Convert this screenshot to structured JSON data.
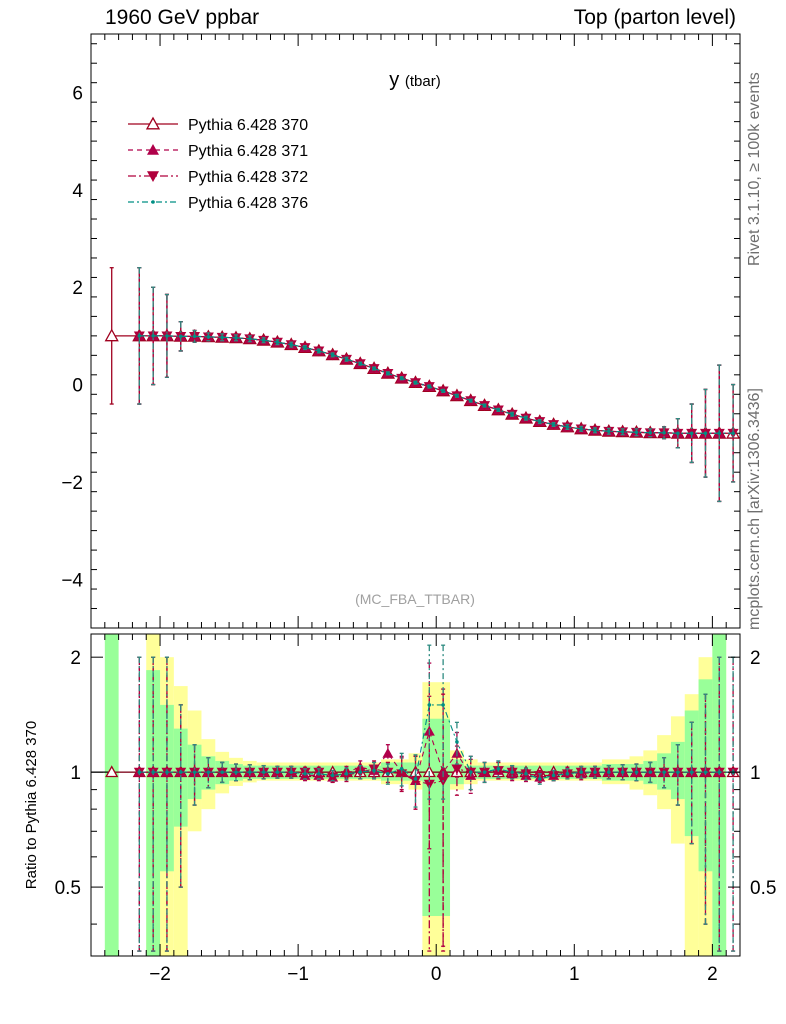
{
  "header": {
    "left": "1960 GeV ppbar",
    "right": "Top (parton level)"
  },
  "side": {
    "rivet": "Rivet 3.1.10, ≥ 100k events",
    "mcplots": "mcplots.cern.ch [arXiv:1306.3436]"
  },
  "chart_data": {
    "type": "line",
    "title": "y (tbar)",
    "analysis_label": "(MC_FBA_TTBAR)",
    "ratio_ylabel": "Ratio to Pythia 6.428 370",
    "xlim": [
      -2.5,
      2.2
    ],
    "ylim_main": [
      -5.0,
      7.2
    ],
    "ylim_ratio": [
      0.33,
      2.3
    ],
    "x_ticks": [
      "−2",
      "−1",
      "0",
      "1",
      "2"
    ],
    "y_ticks_main": [
      "−4",
      "−2",
      "0",
      "2",
      "4",
      "6"
    ],
    "y_ticks_ratio": [
      "0.5",
      "1",
      "2"
    ],
    "legend": [
      {
        "name": "Pythia 6.428 370",
        "color": "#a0001f",
        "dash": "none",
        "marker": "triangle-open"
      },
      {
        "name": "Pythia 6.428 371",
        "color": "#b0004a",
        "dash": "5,4",
        "marker": "triangle-up"
      },
      {
        "name": "Pythia 6.428 372",
        "color": "#b0003c",
        "dash": "8,3,2,3",
        "marker": "triangle-down"
      },
      {
        "name": "Pythia 6.428 376",
        "color": "#008f84",
        "dash": "6,3,2,3",
        "marker": "dot"
      }
    ],
    "x": [
      -2.35,
      -2.15,
      -2.05,
      -1.95,
      -1.85,
      -1.75,
      -1.65,
      -1.55,
      -1.45,
      -1.35,
      -1.25,
      -1.15,
      -1.05,
      -0.95,
      -0.85,
      -0.75,
      -0.65,
      -0.55,
      -0.45,
      -0.35,
      -0.25,
      -0.15,
      -0.05,
      0.05,
      0.15,
      0.25,
      0.35,
      0.45,
      0.55,
      0.65,
      0.75,
      0.85,
      0.95,
      1.05,
      1.15,
      1.25,
      1.35,
      1.45,
      1.55,
      1.65,
      1.75,
      1.85,
      1.95,
      2.05,
      2.15
    ],
    "y_mean": [
      1.0,
      1.0,
      1.0,
      1.0,
      0.99,
      0.99,
      0.98,
      0.97,
      0.96,
      0.94,
      0.91,
      0.87,
      0.82,
      0.76,
      0.69,
      0.61,
      0.52,
      0.43,
      0.33,
      0.23,
      0.13,
      0.04,
      -0.04,
      -0.13,
      -0.23,
      -0.33,
      -0.43,
      -0.52,
      -0.61,
      -0.69,
      -0.76,
      -0.82,
      -0.87,
      -0.91,
      -0.94,
      -0.96,
      -0.97,
      -0.98,
      -0.99,
      -0.99,
      -1.0,
      -1.0,
      -1.0,
      -1.0,
      -1.0
    ],
    "main_err": [
      1.4,
      1.4,
      1.0,
      0.85,
      0.3,
      0.12,
      0.08,
      0.07,
      0.06,
      0.06,
      0.05,
      0.05,
      0.05,
      0.04,
      0.04,
      0.04,
      0.04,
      0.03,
      0.03,
      0.03,
      0.03,
      0.03,
      0.03,
      0.03,
      0.03,
      0.03,
      0.03,
      0.03,
      0.04,
      0.04,
      0.04,
      0.04,
      0.05,
      0.05,
      0.05,
      0.06,
      0.06,
      0.07,
      0.08,
      0.12,
      0.3,
      0.6,
      0.9,
      1.4,
      1.0
    ],
    "series": [
      {
        "name": "Pythia 6.428 370",
        "x_first": -2.35,
        "values": [
          1.0,
          1.0,
          1.0,
          1.0,
          1.0,
          1.0,
          1.0,
          1.0,
          1.0,
          1.0,
          1.0,
          1.0,
          1.0,
          1.0,
          1.0,
          1.0,
          1.0,
          1.0,
          1.0,
          1.0,
          1.0,
          1.0,
          1.0,
          1.0,
          1.0,
          1.0,
          1.0,
          1.0,
          1.0,
          1.0,
          1.0,
          1.0,
          1.0,
          1.0,
          1.0,
          1.0,
          1.0,
          1.0,
          1.0,
          1.0,
          1.0,
          1.0,
          1.0,
          1.0,
          1.0
        ]
      },
      {
        "name": "Pythia 6.428 371",
        "x_first": -2.15,
        "values": [
          null,
          1.0,
          1.0,
          1.0,
          1.0,
          1.0,
          1.0,
          1.0,
          1.0,
          1.0,
          1.0,
          1.0,
          1.0,
          0.98,
          0.98,
          0.97,
          1.0,
          1.03,
          1.01,
          1.12,
          1.0,
          0.95,
          1.28,
          1.0,
          1.12,
          0.98,
          1.0,
          1.01,
          0.99,
          0.98,
          0.97,
          0.98,
          1.0,
          0.99,
          1.0,
          1.0,
          1.0,
          1.0,
          1.0,
          1.0,
          1.0,
          1.0,
          1.0,
          1.0,
          null
        ]
      },
      {
        "name": "Pythia 6.428 372",
        "x_first": -2.15,
        "values": [
          null,
          1.0,
          1.0,
          1.0,
          1.0,
          1.0,
          1.0,
          1.0,
          1.0,
          1.0,
          1.0,
          1.0,
          1.0,
          1.0,
          1.0,
          0.97,
          0.98,
          1.0,
          1.02,
          1.0,
          0.99,
          0.95,
          0.93,
          0.95,
          1.02,
          1.0,
          1.0,
          1.01,
          1.0,
          0.99,
          0.98,
          0.98,
          0.99,
          1.0,
          1.0,
          1.0,
          1.0,
          1.0,
          1.0,
          1.0,
          1.0,
          1.0,
          1.0,
          1.0,
          1.0
        ]
      },
      {
        "name": "Pythia 6.428 376",
        "x_first": -2.15,
        "values": [
          null,
          1.0,
          1.0,
          1.0,
          1.0,
          1.0,
          1.0,
          1.0,
          1.0,
          1.0,
          1.0,
          1.0,
          1.0,
          0.99,
          0.99,
          0.98,
          0.99,
          1.0,
          1.01,
          0.99,
          1.02,
          0.96,
          1.5,
          1.5,
          1.2,
          1.0,
          1.0,
          1.02,
          1.0,
          0.99,
          0.96,
          0.98,
          0.99,
          1.0,
          1.0,
          1.0,
          1.0,
          1.0,
          1.0,
          1.0,
          1.0,
          1.0,
          1.0,
          1.0,
          1.0
        ]
      }
    ],
    "ratio_err": [
      1.5,
      1.0,
      1.0,
      1.0,
      0.5,
      0.18,
      0.09,
      0.06,
      0.05,
      0.045,
      0.04,
      0.035,
      0.035,
      0.03,
      0.03,
      0.03,
      0.035,
      0.04,
      0.05,
      0.06,
      0.1,
      0.15,
      0.65,
      0.65,
      0.15,
      0.1,
      0.06,
      0.05,
      0.04,
      0.035,
      0.03,
      0.03,
      0.03,
      0.035,
      0.035,
      0.04,
      0.045,
      0.05,
      0.06,
      0.09,
      0.18,
      0.35,
      0.6,
      1.0,
      1.0
    ],
    "band_inner": [
      [
        -2.4,
        -2.3,
        0.33,
        2.3
      ],
      [
        -2.1,
        -2.0,
        0.33,
        1.85
      ],
      [
        -2.0,
        -1.9,
        0.55,
        1.5
      ],
      [
        -1.9,
        -1.8,
        0.72,
        1.3
      ],
      [
        -1.8,
        -1.7,
        0.85,
        1.18
      ],
      [
        -1.7,
        -1.6,
        0.9,
        1.1
      ],
      [
        -1.6,
        -1.5,
        0.93,
        1.07
      ],
      [
        -1.5,
        -1.4,
        0.95,
        1.05
      ],
      [
        -1.4,
        -0.4,
        0.96,
        1.04
      ],
      [
        -0.4,
        -0.1,
        0.95,
        1.06
      ],
      [
        -0.1,
        0.1,
        0.42,
        1.38
      ],
      [
        0.1,
        0.2,
        0.93,
        1.08
      ],
      [
        0.2,
        1.2,
        0.96,
        1.04
      ],
      [
        1.2,
        1.5,
        0.95,
        1.05
      ],
      [
        1.5,
        1.6,
        0.93,
        1.07
      ],
      [
        1.6,
        1.7,
        0.9,
        1.12
      ],
      [
        1.7,
        1.8,
        0.85,
        1.2
      ],
      [
        1.8,
        1.9,
        0.68,
        1.45
      ],
      [
        1.9,
        2.0,
        0.55,
        1.75
      ],
      [
        2.0,
        2.1,
        0.33,
        2.3
      ]
    ],
    "band_outer": [
      [
        -2.1,
        -2.0,
        0.33,
        2.3
      ],
      [
        -2.0,
        -1.9,
        0.33,
        2.0
      ],
      [
        -1.9,
        -1.8,
        0.33,
        1.68
      ],
      [
        -1.8,
        -1.7,
        0.7,
        1.45
      ],
      [
        -1.7,
        -1.6,
        0.8,
        1.22
      ],
      [
        -1.6,
        -1.5,
        0.88,
        1.13
      ],
      [
        -1.5,
        -1.4,
        0.92,
        1.09
      ],
      [
        -1.4,
        -1.3,
        0.94,
        1.07
      ],
      [
        -1.3,
        -0.4,
        0.95,
        1.06
      ],
      [
        -0.4,
        -0.2,
        0.93,
        1.08
      ],
      [
        -0.2,
        -0.1,
        0.9,
        1.12
      ],
      [
        -0.1,
        0.1,
        0.33,
        1.72
      ],
      [
        0.1,
        0.2,
        0.9,
        1.14
      ],
      [
        0.2,
        0.3,
        0.93,
        1.08
      ],
      [
        0.3,
        1.2,
        0.95,
        1.06
      ],
      [
        1.2,
        1.4,
        0.93,
        1.08
      ],
      [
        1.4,
        1.5,
        0.9,
        1.1
      ],
      [
        1.5,
        1.6,
        0.87,
        1.14
      ],
      [
        1.6,
        1.7,
        0.8,
        1.25
      ],
      [
        1.7,
        1.8,
        0.65,
        1.4
      ],
      [
        1.8,
        1.9,
        0.33,
        1.6
      ],
      [
        1.9,
        2.0,
        0.33,
        2.0
      ],
      [
        2.0,
        2.1,
        0.33,
        2.3
      ]
    ],
    "colors": {
      "inner_band": "#99ff99",
      "outer_band": "#ffff99",
      "ratio_line": "#000000"
    }
  }
}
